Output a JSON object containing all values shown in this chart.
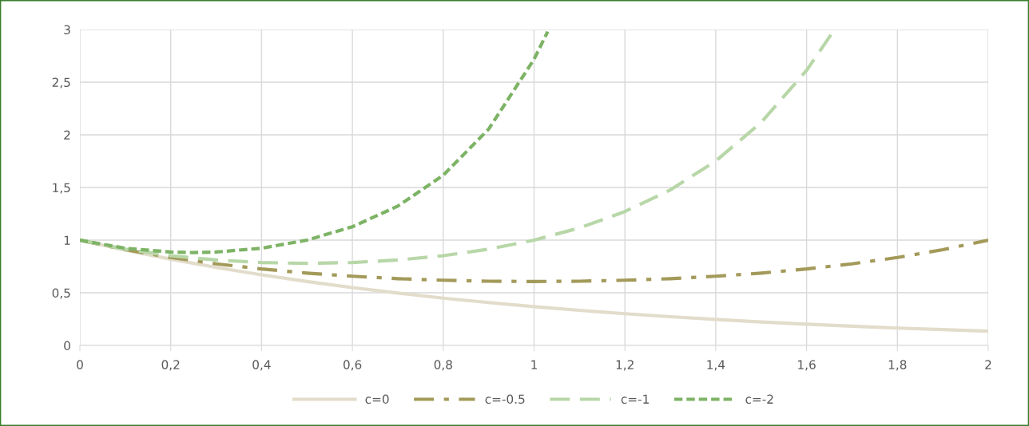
{
  "chart_data": {
    "type": "line",
    "xlim": [
      0,
      2
    ],
    "xticks": [
      0,
      {
        "value": 0.2,
        "label": "0,2"
      },
      {
        "value": 0.4,
        "label": "0,4"
      },
      {
        "value": 0.6,
        "label": "0,6"
      },
      {
        "value": 0.8,
        "label": "0,8"
      },
      1,
      {
        "value": 1.2,
        "label": "1,2"
      },
      {
        "value": 1.4,
        "label": "1,4"
      },
      {
        "value": 1.6,
        "label": "1,6"
      },
      {
        "value": 1.8,
        "label": "1,8"
      },
      2
    ],
    "ylim": [
      0,
      3
    ],
    "yticks": [
      0,
      {
        "value": 0.5,
        "label": "0,5"
      },
      1,
      {
        "value": 1.5,
        "label": "1,5"
      },
      2,
      {
        "value": 2.5,
        "label": "2,5"
      },
      3
    ],
    "grid": true,
    "legend": "bottom",
    "marker": "none",
    "series": [
      {
        "name": "c=0",
        "color": "#e2dccb",
        "line_style": "solid",
        "x": [
          0,
          0.1,
          0.2,
          0.3,
          0.4,
          0.5,
          0.6,
          0.7,
          0.8,
          0.9,
          1,
          1.1,
          1.2,
          1.3,
          1.4,
          1.5,
          1.6,
          1.7,
          1.8,
          1.9,
          2
        ],
        "values": [
          1,
          0.905,
          0.819,
          0.741,
          0.67,
          0.607,
          0.549,
          0.497,
          0.449,
          0.407,
          0.368,
          0.333,
          0.301,
          0.273,
          0.247,
          0.223,
          0.202,
          0.183,
          0.165,
          0.15,
          0.135
        ]
      },
      {
        "name": "c=-0.5",
        "color": "#a39a5a",
        "line_style": "dashdot",
        "x": [
          0,
          0.1,
          0.2,
          0.3,
          0.4,
          0.5,
          0.6,
          0.7,
          0.8,
          0.9,
          1,
          1.1,
          1.2,
          1.3,
          1.4,
          1.5,
          1.6,
          1.7,
          1.8,
          1.9,
          2
        ],
        "values": [
          1,
          0.909,
          0.835,
          0.775,
          0.726,
          0.687,
          0.657,
          0.634,
          0.619,
          0.61,
          0.607,
          0.61,
          0.619,
          0.634,
          0.657,
          0.687,
          0.726,
          0.775,
          0.835,
          0.909,
          1
        ]
      },
      {
        "name": "c=-1",
        "color": "#b8d7a8",
        "line_style": "dashed",
        "x": [
          0,
          0.1,
          0.2,
          0.3,
          0.4,
          0.5,
          0.6,
          0.7,
          0.8,
          0.9,
          1,
          1.1,
          1.2,
          1.3,
          1.4,
          1.5,
          1.6,
          1.66
        ],
        "values": [
          1,
          0.914,
          0.852,
          0.811,
          0.787,
          0.779,
          0.787,
          0.811,
          0.852,
          0.914,
          1,
          1.116,
          1.271,
          1.477,
          1.751,
          2.117,
          2.612,
          2.99
        ]
      },
      {
        "name": "c=-2",
        "color": "#7db365",
        "line_style": "dotted",
        "x": [
          0,
          0.1,
          0.2,
          0.25,
          0.3,
          0.4,
          0.5,
          0.6,
          0.7,
          0.8,
          0.9,
          1,
          1.03
        ],
        "values": [
          1,
          0.923,
          0.887,
          0.882,
          0.887,
          0.923,
          1,
          1.127,
          1.323,
          1.616,
          2.054,
          2.718,
          2.98
        ]
      }
    ]
  }
}
